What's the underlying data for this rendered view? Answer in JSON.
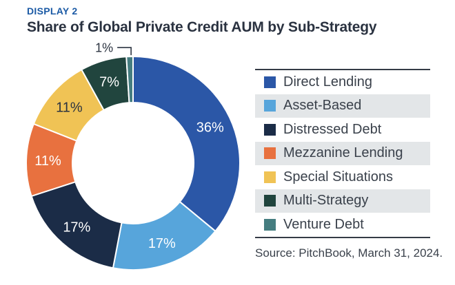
{
  "header": {
    "display_label": "DISPLAY 2",
    "title": "Share of Global Private Credit AUM by Sub-Strategy"
  },
  "chart_data": {
    "type": "pie",
    "donut": true,
    "hole_ratio": 0.57,
    "start_angle_deg": 0,
    "clockwise": true,
    "legend_position": "right",
    "title": "Share of Global Private Credit AUM by Sub-Strategy",
    "unit": "%",
    "segments": [
      {
        "label": "Direct Lending",
        "value": 36,
        "data_label": "36%",
        "color": "#2B57A7",
        "label_color": "#FFFFFF",
        "label_outside": false
      },
      {
        "label": "Asset-Based",
        "value": 17,
        "data_label": "17%",
        "color": "#57A5DB",
        "label_color": "#FFFFFF",
        "label_outside": false
      },
      {
        "label": "Distressed Debt",
        "value": 17,
        "data_label": "17%",
        "color": "#1B2C47",
        "label_color": "#FFFFFF",
        "label_outside": false
      },
      {
        "label": "Mezzanine Lending",
        "value": 11,
        "data_label": "11%",
        "color": "#E8713F",
        "label_color": "#FFFFFF",
        "label_outside": false
      },
      {
        "label": "Special Situations",
        "value": 11,
        "data_label": "11%",
        "color": "#F0C355",
        "label_color": "#2B3340",
        "label_outside": false
      },
      {
        "label": "Multi-Strategy",
        "value": 7,
        "data_label": "7%",
        "color": "#21453E",
        "label_color": "#FFFFFF",
        "label_outside": false
      },
      {
        "label": "Venture Debt",
        "value": 1,
        "data_label": "1%",
        "color": "#457D80",
        "label_color": "#2B3340",
        "label_outside": true
      }
    ]
  },
  "legend": {
    "items": [
      {
        "label": "Direct Lending",
        "color": "#2B57A7"
      },
      {
        "label": "Asset-Based",
        "color": "#57A5DB"
      },
      {
        "label": "Distressed Debt",
        "color": "#1B2C47"
      },
      {
        "label": "Mezzanine Lending",
        "color": "#E8713F"
      },
      {
        "label": "Special Situations",
        "color": "#F0C355"
      },
      {
        "label": "Multi-Strategy",
        "color": "#21453E"
      },
      {
        "label": "Venture Debt",
        "color": "#457D80"
      }
    ],
    "stripe_color": "#E3E6E8"
  },
  "footer": {
    "source": "Source: PitchBook, March 31, 2024."
  },
  "colors": {
    "display_label": "#1B5AA5",
    "title_text": "#2A3240",
    "body_text": "#3A414B",
    "rule": "#343B45",
    "slice_divider": "#FFFFFF"
  }
}
